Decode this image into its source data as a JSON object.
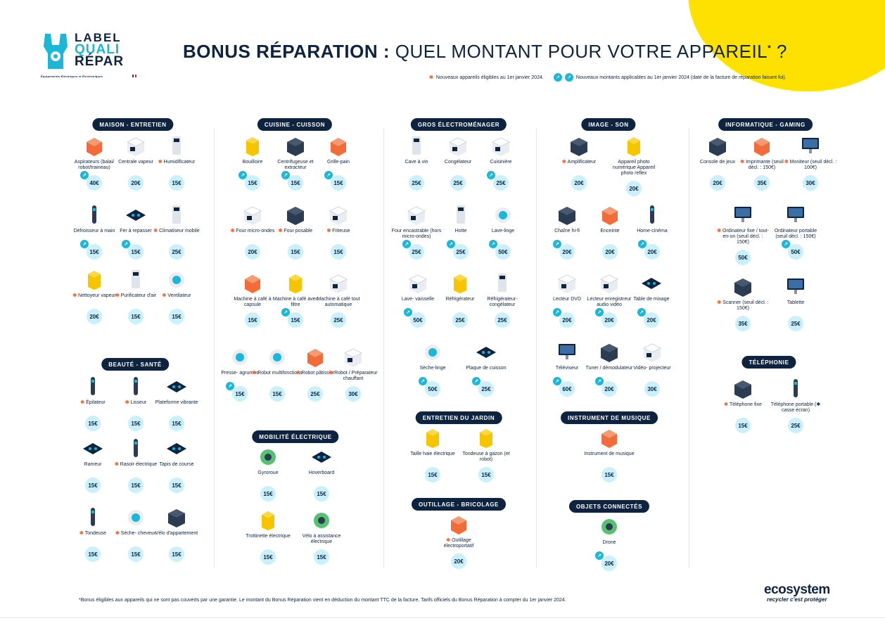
{
  "logo": {
    "line1": "LABEL",
    "line2": "QUALI",
    "line3": "RÉPAR",
    "sub": "Équipements Électriques et Électroniques"
  },
  "title": {
    "bold": "BONUS RÉPARATION :",
    "light": " QUEL MONTANT POUR VOTRE APPAREIL",
    "sup": "*",
    "end": " ?"
  },
  "legend": {
    "star": "✱",
    "new_devices": "Nouveaux appareils éligibles au 1er janvier 2024.",
    "arrow": "↗",
    "new_amounts": "Nouveaux montants applicables au 1er janvier 2024 (date de la facture de réparation faisant foi)."
  },
  "colors": {
    "navy": "#0d2340",
    "cyan": "#1ab7d9",
    "price_bg": "#c9f0fb",
    "orange": "#f26b3a",
    "yellow": "#ffe100"
  },
  "categories": [
    {
      "label": "MAISON - ENTRETIEN",
      "items": [
        {
          "name": "Aspirateurs (balai/ robot/traineau)",
          "price": "40€",
          "new_amount": true,
          "icon": "vacuum-icon"
        },
        {
          "name": "Centrale vapeur",
          "price": "20€",
          "icon": "steam-station-icon"
        },
        {
          "name": "Humidificateur",
          "price": "15€",
          "new_device": true,
          "icon": "humidifier-icon"
        },
        {
          "name": "Défroisseur à main",
          "price": "15€",
          "new_amount": true,
          "icon": "garment-steamer-icon"
        },
        {
          "name": "Fer à repasser",
          "price": "15€",
          "new_amount": true,
          "icon": "iron-icon"
        },
        {
          "name": "Climatiseur mobile",
          "price": "25€",
          "new_device": true,
          "icon": "air-conditioner-icon"
        },
        {
          "name": "Nettoyeur vapeur",
          "price": "20€",
          "new_device": true,
          "icon": "steam-cleaner-icon"
        },
        {
          "name": "Purificateur d'air",
          "price": "15€",
          "new_device": true,
          "icon": "air-purifier-icon"
        },
        {
          "name": "Ventilateur",
          "price": "15€",
          "new_device": true,
          "icon": "fan-icon"
        }
      ]
    },
    {
      "label": "BEAUTÉ - SANTÉ",
      "items": [
        {
          "name": "Épilateur",
          "price": "15€",
          "new_device": true,
          "icon": "epilator-icon"
        },
        {
          "name": "Lisseur",
          "price": "15€",
          "new_device": true,
          "icon": "hair-straightener-icon"
        },
        {
          "name": "Plateforme vibrante",
          "price": "15€",
          "icon": "vibration-platform-icon"
        },
        {
          "name": "Rameur",
          "price": "15€",
          "icon": "rowing-machine-icon"
        },
        {
          "name": "Rasoir électrique",
          "price": "15€",
          "new_device": true,
          "icon": "electric-razor-icon"
        },
        {
          "name": "Tapis de course",
          "price": "15€",
          "icon": "treadmill-icon"
        },
        {
          "name": "Tondeuse",
          "price": "15€",
          "new_device": true,
          "icon": "hair-clipper-icon"
        },
        {
          "name": "Sèche- cheveux",
          "price": "15€",
          "new_device": true,
          "icon": "hair-dryer-icon"
        },
        {
          "name": "Vélo d'appartement",
          "price": "15€",
          "icon": "exercise-bike-icon"
        }
      ]
    },
    {
      "label": "CUISINE - CUISSON",
      "items": [
        {
          "name": "Bouilloire",
          "price": "15€",
          "new_amount": true,
          "icon": "kettle-icon"
        },
        {
          "name": "Centrifugeuse et extracteur",
          "price": "15€",
          "new_amount": true,
          "icon": "juicer-icon"
        },
        {
          "name": "Grille-pain",
          "price": "15€",
          "new_amount": true,
          "icon": "toaster-icon"
        },
        {
          "name": "Four micro-ondes",
          "price": "20€",
          "new_device": true,
          "icon": "microwave-icon"
        },
        {
          "name": "Four posable",
          "price": "15€",
          "new_device": true,
          "icon": "countertop-oven-icon"
        },
        {
          "name": "Friteuse",
          "price": "15€",
          "new_device": true,
          "icon": "fryer-icon"
        },
        {
          "name": "Machine à café à capsule",
          "price": "15€",
          "icon": "capsule-coffee-icon"
        },
        {
          "name": "Machine à café avec filtre",
          "price": "15€",
          "new_amount": true,
          "icon": "filter-coffee-icon"
        },
        {
          "name": "Machine à café tout automatique",
          "price": "25€",
          "icon": "espresso-machine-icon"
        },
        {
          "name": "Presse- agrumes",
          "price": "15€",
          "new_amount": true,
          "icon": "citrus-press-icon"
        },
        {
          "name": "Robot multifonctions",
          "price": "15€",
          "new_device": true,
          "icon": "food-processor-icon"
        },
        {
          "name": "Robot pâtissier",
          "price": "25€",
          "new_device": true,
          "icon": "stand-mixer-icon"
        },
        {
          "name": "Robot / Préparateur chauffant",
          "price": "30€",
          "new_device": true,
          "icon": "cooking-robot-icon"
        }
      ]
    },
    {
      "label": "MOBILITÉ ÉLECTRIQUE",
      "items": [
        {
          "name": "Gyroroue",
          "price": "15€",
          "icon": "monowheel-icon"
        },
        {
          "name": "Hoverboard",
          "price": "15€",
          "icon": "hoverboard-icon"
        },
        {
          "name": "Trottinette électrique",
          "price": "15€",
          "icon": "e-scooter-icon"
        },
        {
          "name": "Vélo à assistance électrique",
          "price": "15€",
          "icon": "e-bike-icon"
        }
      ]
    },
    {
      "label": "GROS ÉLECTROMÉNAGER",
      "items": [
        {
          "name": "Cave à vin",
          "price": "25€",
          "icon": "wine-cellar-icon"
        },
        {
          "name": "Congélateur",
          "price": "25€",
          "icon": "chest-freezer-icon"
        },
        {
          "name": "Cuisinière",
          "price": "25€",
          "new_amount": true,
          "icon": "cooker-icon"
        },
        {
          "name": "Four encastrable (hors micro-ondes)",
          "price": "25€",
          "new_amount": true,
          "icon": "built-in-oven-icon"
        },
        {
          "name": "Hotte",
          "price": "25€",
          "new_amount": true,
          "icon": "cooker-hood-icon"
        },
        {
          "name": "Lave-linge",
          "price": "50€",
          "new_amount": true,
          "icon": "washing-machine-icon"
        },
        {
          "name": "Lave- vaisselle",
          "price": "50€",
          "new_amount": true,
          "icon": "dishwasher-icon"
        },
        {
          "name": "Réfrigérateur",
          "price": "25€",
          "icon": "fridge-icon"
        },
        {
          "name": "Réfrigérateur- congélateur",
          "price": "25€",
          "icon": "fridge-freezer-icon"
        },
        {
          "name": "Sèche-linge",
          "price": "50€",
          "new_amount": true,
          "icon": "tumble-dryer-icon"
        },
        {
          "name": "Plaque de cuisson",
          "price": "25€",
          "new_amount": true,
          "icon": "hob-icon"
        }
      ]
    },
    {
      "label": "ENTRETIEN DU JARDIN",
      "items": [
        {
          "name": "Taille haie électrique",
          "price": "15€",
          "icon": "hedge-trimmer-icon"
        },
        {
          "name": "Tondeuse à gazon (et robot)",
          "price": "15€",
          "icon": "lawn-mower-icon"
        }
      ]
    },
    {
      "label": "OUTILLAGE - BRICOLAGE",
      "items": [
        {
          "name": "Outillage électroportatif",
          "price": "20€",
          "new_device": true,
          "icon": "power-tools-icon"
        }
      ]
    },
    {
      "label": "IMAGE - SON",
      "items": [
        {
          "name": "Amplificateur",
          "price": "20€",
          "new_device": true,
          "icon": "amplifier-icon"
        },
        {
          "name": "Appareil photo numérique Appareil photo reflex",
          "price": "20€",
          "icon": "camera-icon"
        },
        {
          "name": "Chaîne hi-fi",
          "price": "20€",
          "new_amount": true,
          "icon": "hifi-system-icon"
        },
        {
          "name": "Enceinte",
          "price": "20€",
          "icon": "speaker-icon"
        },
        {
          "name": "Home-cinéma",
          "price": "20€",
          "new_amount": true,
          "icon": "home-cinema-icon"
        },
        {
          "name": "Lecteur DVD",
          "price": "20€",
          "new_amount": true,
          "icon": "dvd-player-icon"
        },
        {
          "name": "Lecteur enregistreur audio vidéo",
          "price": "20€",
          "new_amount": true,
          "icon": "recorder-icon"
        },
        {
          "name": "Table de mixage",
          "price": "20€",
          "new_amount": true,
          "icon": "mixing-desk-icon"
        },
        {
          "name": "Téléviseur",
          "price": "60€",
          "new_amount": true,
          "icon": "tv-icon"
        },
        {
          "name": "Tuner / démodulateur",
          "price": "20€",
          "new_amount": true,
          "icon": "tuner-icon"
        },
        {
          "name": "Vidéo- projecteur",
          "price": "30€",
          "icon": "projector-icon"
        }
      ]
    },
    {
      "label": "INSTRUMENT DE MUSIQUE",
      "items": [
        {
          "name": "Instrument de musique",
          "price": "15€",
          "icon": "guitar-icon"
        }
      ]
    },
    {
      "label": "OBJETS CONNECTÉS",
      "items": [
        {
          "name": "Drone",
          "price": "20€",
          "new_amount": true,
          "icon": "drone-icon"
        }
      ]
    },
    {
      "label": "INFORMATIQUE - GAMING",
      "items": [
        {
          "name": "Console de jeux",
          "price": "20€",
          "icon": "game-console-icon"
        },
        {
          "name": "Imprimante (seuil décl. : 150€)",
          "price": "35€",
          "new_device": true,
          "icon": "printer-icon"
        },
        {
          "name": "Moniteur (seuil décl. : 100€)",
          "price": "30€",
          "new_device": true,
          "icon": "monitor-icon"
        },
        {
          "name": "Ordinateur fixe / tout-en-un (seuil décl. : 150€)",
          "price": "50€",
          "new_device": true,
          "icon": "desktop-computer-icon"
        },
        {
          "name": "Ordinateur portable (seuil décl. : 150€)",
          "price": "50€",
          "new_amount": true,
          "icon": "laptop-icon"
        },
        {
          "name": "Scanner (seuil décl. : 150€)",
          "price": "35€",
          "new_device": true,
          "icon": "scanner-icon"
        },
        {
          "name": "Tablette",
          "price": "25€",
          "icon": "tablet-icon"
        }
      ]
    },
    {
      "label": "TÉLÉPHONIE",
      "items": [
        {
          "name": "Téléphone fixe",
          "price": "15€",
          "new_device": true,
          "icon": "landline-phone-icon"
        },
        {
          "name": "Téléphone portable (✱ casse écran)",
          "price": "25€",
          "icon": "mobile-phone-icon"
        }
      ]
    }
  ],
  "footnote": "*Bonus éligibles aux appareils qui ne sont pas couverts par une garantie. Le montant du Bonus Réparation vient en déduction du montant TTC de la facture. Tarifs officiels du Bonus Réparation à compter du 1er janvier 2024.",
  "brand": {
    "name": "ecosystem",
    "tagline": "recycler c'est protéger"
  }
}
